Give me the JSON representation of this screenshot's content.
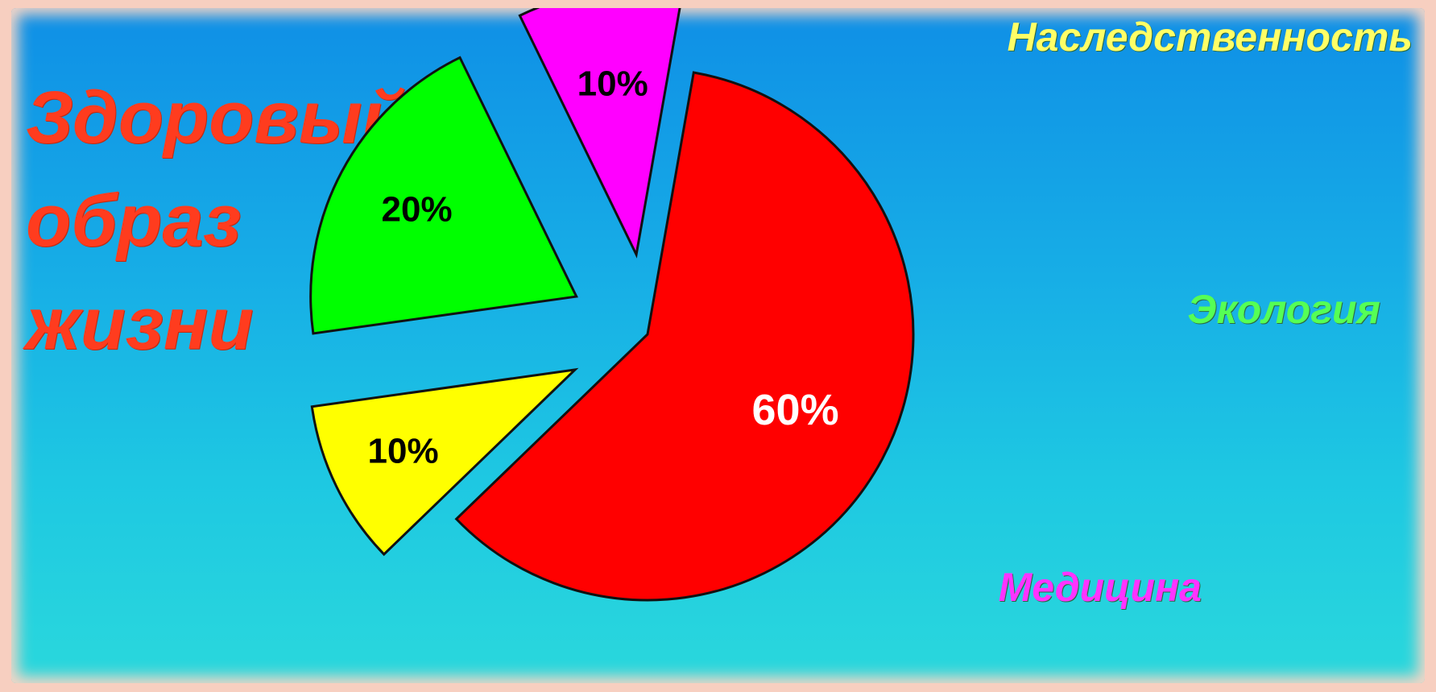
{
  "title_lines": [
    "Здоровый",
    "образ",
    "жизни"
  ],
  "chart_data": {
    "type": "pie",
    "title": "Здоровый образ жизни",
    "slices": [
      {
        "label": "",
        "value": 60,
        "value_label": "60%",
        "color": "#ff0000",
        "value_color": "#ffffff"
      },
      {
        "label": "Наследственность",
        "value": 10,
        "value_label": "10%",
        "color": "#ffff00",
        "label_color": "#ffff66",
        "value_color": "#000000"
      },
      {
        "label": "Экология",
        "value": 20,
        "value_label": "20%",
        "color": "#00ff00",
        "label_color": "#55ff55",
        "value_color": "#000000"
      },
      {
        "label": "Медицина",
        "value": 10,
        "value_label": "10%",
        "color": "#ff00ff",
        "label_color": "#ff33ff",
        "value_color": "#000000"
      }
    ]
  },
  "colors": {
    "title": "#ff3c1e",
    "background_top": "#0f8fe6",
    "background_bottom": "#2ad8dc",
    "border": "#f7cfc0"
  }
}
